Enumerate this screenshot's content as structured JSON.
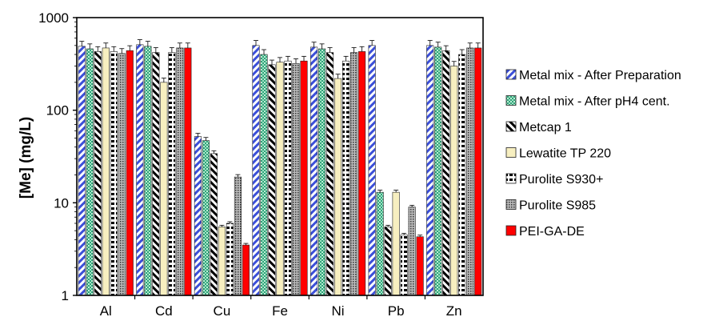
{
  "chart_data": {
    "type": "bar",
    "title": "",
    "xlabel": "",
    "ylabel": "[Me] (mg/L)",
    "y_scale": "log",
    "ylim": [
      1,
      1000
    ],
    "y_ticks": [
      "1",
      "10",
      "100",
      "1000"
    ],
    "grid": false,
    "legend_position": "right",
    "categories": [
      "Al",
      "Cd",
      "Cu",
      "Fe",
      "Ni",
      "Pb",
      "Zn"
    ],
    "series": [
      {
        "name": "Metal mix - After Preparation",
        "pattern": "diag-blue",
        "color": "#3b4fd8",
        "values": [
          490,
          510,
          52,
          500,
          480,
          500,
          500
        ]
      },
      {
        "name": "Metal mix - After pH4 cent.",
        "pattern": "grid-green",
        "color": "#2fa37a",
        "values": [
          460,
          490,
          47,
          400,
          460,
          13,
          480
        ]
      },
      {
        "name": "Metcap 1",
        "pattern": "diag-black",
        "color": "#000000",
        "values": [
          430,
          420,
          34,
          310,
          420,
          5.5,
          440
        ]
      },
      {
        "name": "Lewatite TP 220",
        "pattern": "solid-cream",
        "color": "#f7efc0",
        "values": [
          470,
          200,
          5.5,
          330,
          220,
          13,
          300
        ]
      },
      {
        "name": "Purolite S930+",
        "pattern": "hbars-black",
        "color": "#000000",
        "values": [
          430,
          420,
          6,
          340,
          340,
          4.5,
          400
        ]
      },
      {
        "name": "Purolite S985",
        "pattern": "dots-gray",
        "color": "#666666",
        "values": [
          410,
          470,
          19,
          320,
          420,
          9,
          470
        ]
      },
      {
        "name": "PEI-GA-DE",
        "pattern": "solid-red",
        "color": "#ff0000",
        "values": [
          440,
          470,
          3.5,
          340,
          430,
          4.3,
          470
        ]
      }
    ]
  }
}
